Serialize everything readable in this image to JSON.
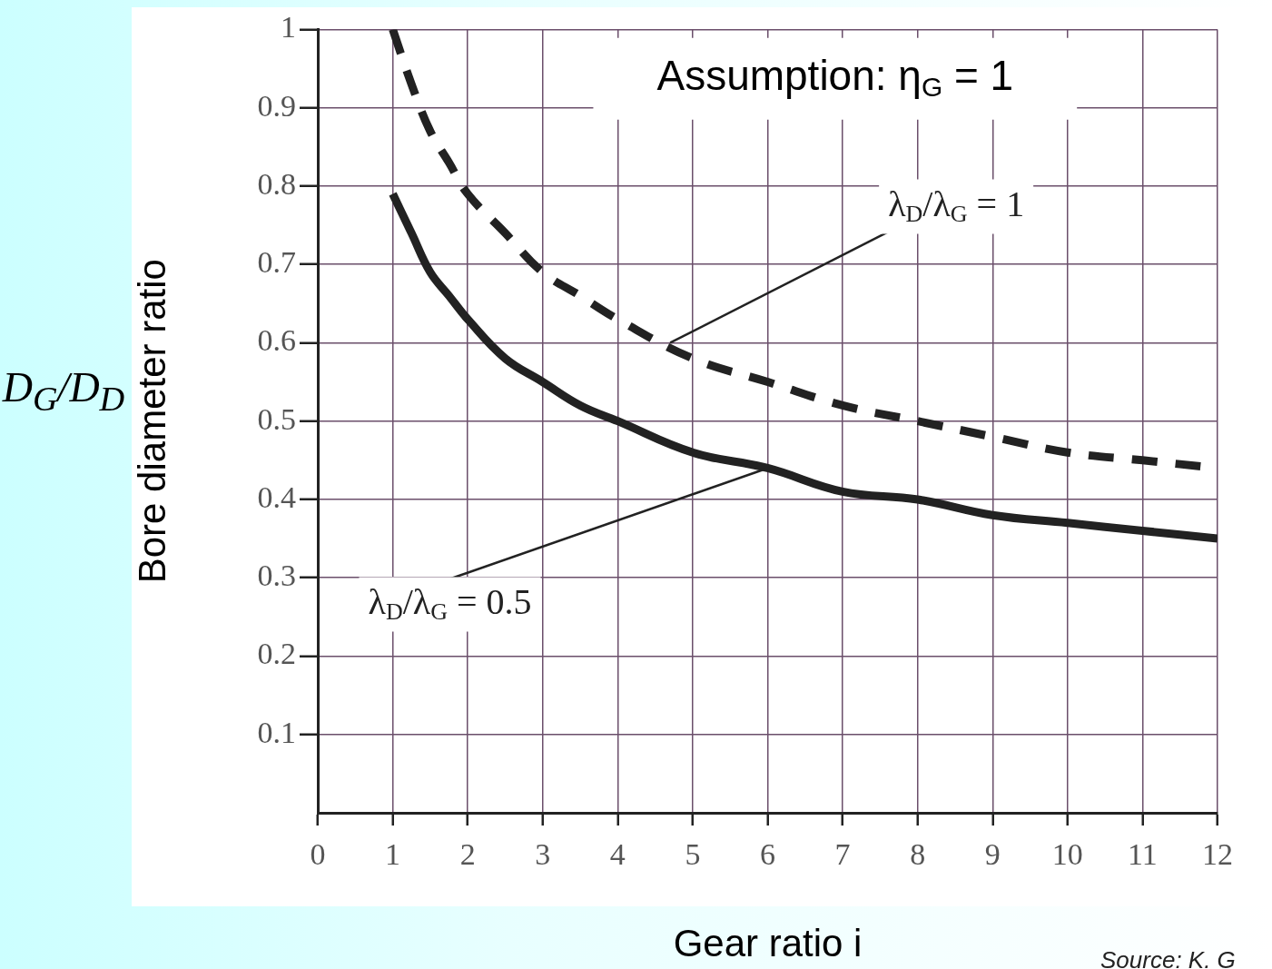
{
  "chart_data": {
    "type": "line",
    "xlabel": "Gear ratio i",
    "ylabel": "Bore diameter ratio",
    "x": [
      1,
      1.25,
      1.5,
      1.75,
      2,
      2.5,
      3,
      3.5,
      4,
      5,
      6,
      7,
      8,
      9,
      10,
      11,
      12
    ],
    "series": [
      {
        "color": "#222222",
        "line_style": "dashed",
        "values": [
          1.0,
          0.93,
          0.87,
          0.83,
          0.79,
          0.74,
          0.69,
          0.66,
          0.63,
          0.58,
          0.55,
          0.52,
          0.5,
          0.48,
          0.46,
          0.45,
          0.44
        ]
      },
      {
        "color": "#222222",
        "line_style": "solid",
        "values": [
          0.79,
          0.74,
          0.69,
          0.66,
          0.63,
          0.58,
          0.55,
          0.52,
          0.5,
          0.46,
          0.44,
          0.41,
          0.4,
          0.38,
          0.37,
          0.36,
          0.35
        ]
      }
    ],
    "xlim": [
      0,
      12
    ],
    "ylim": [
      0,
      1
    ],
    "xticks": [
      0,
      1,
      2,
      3,
      4,
      5,
      6,
      7,
      8,
      9,
      10,
      11,
      12
    ],
    "yticks": [
      0.1,
      0.2,
      0.3,
      0.4,
      0.5,
      0.6,
      0.7,
      0.8,
      0.9,
      1
    ],
    "grid": true,
    "legend": false,
    "marker": "none",
    "annotations": [
      "Assumption: η$_{G}$ = 1",
      {
        "text": "λ$_{D}$/λ$_{G}$ = 1",
        "x": 4.7,
        "y": 0.6
      },
      {
        "text": "λ$_{D}$/λ$_{G}$ = 0.5",
        "x": 6,
        "y": 0.44
      },
      "D$_{G}$/D$_{D}$",
      "Source: K. G"
    ]
  }
}
